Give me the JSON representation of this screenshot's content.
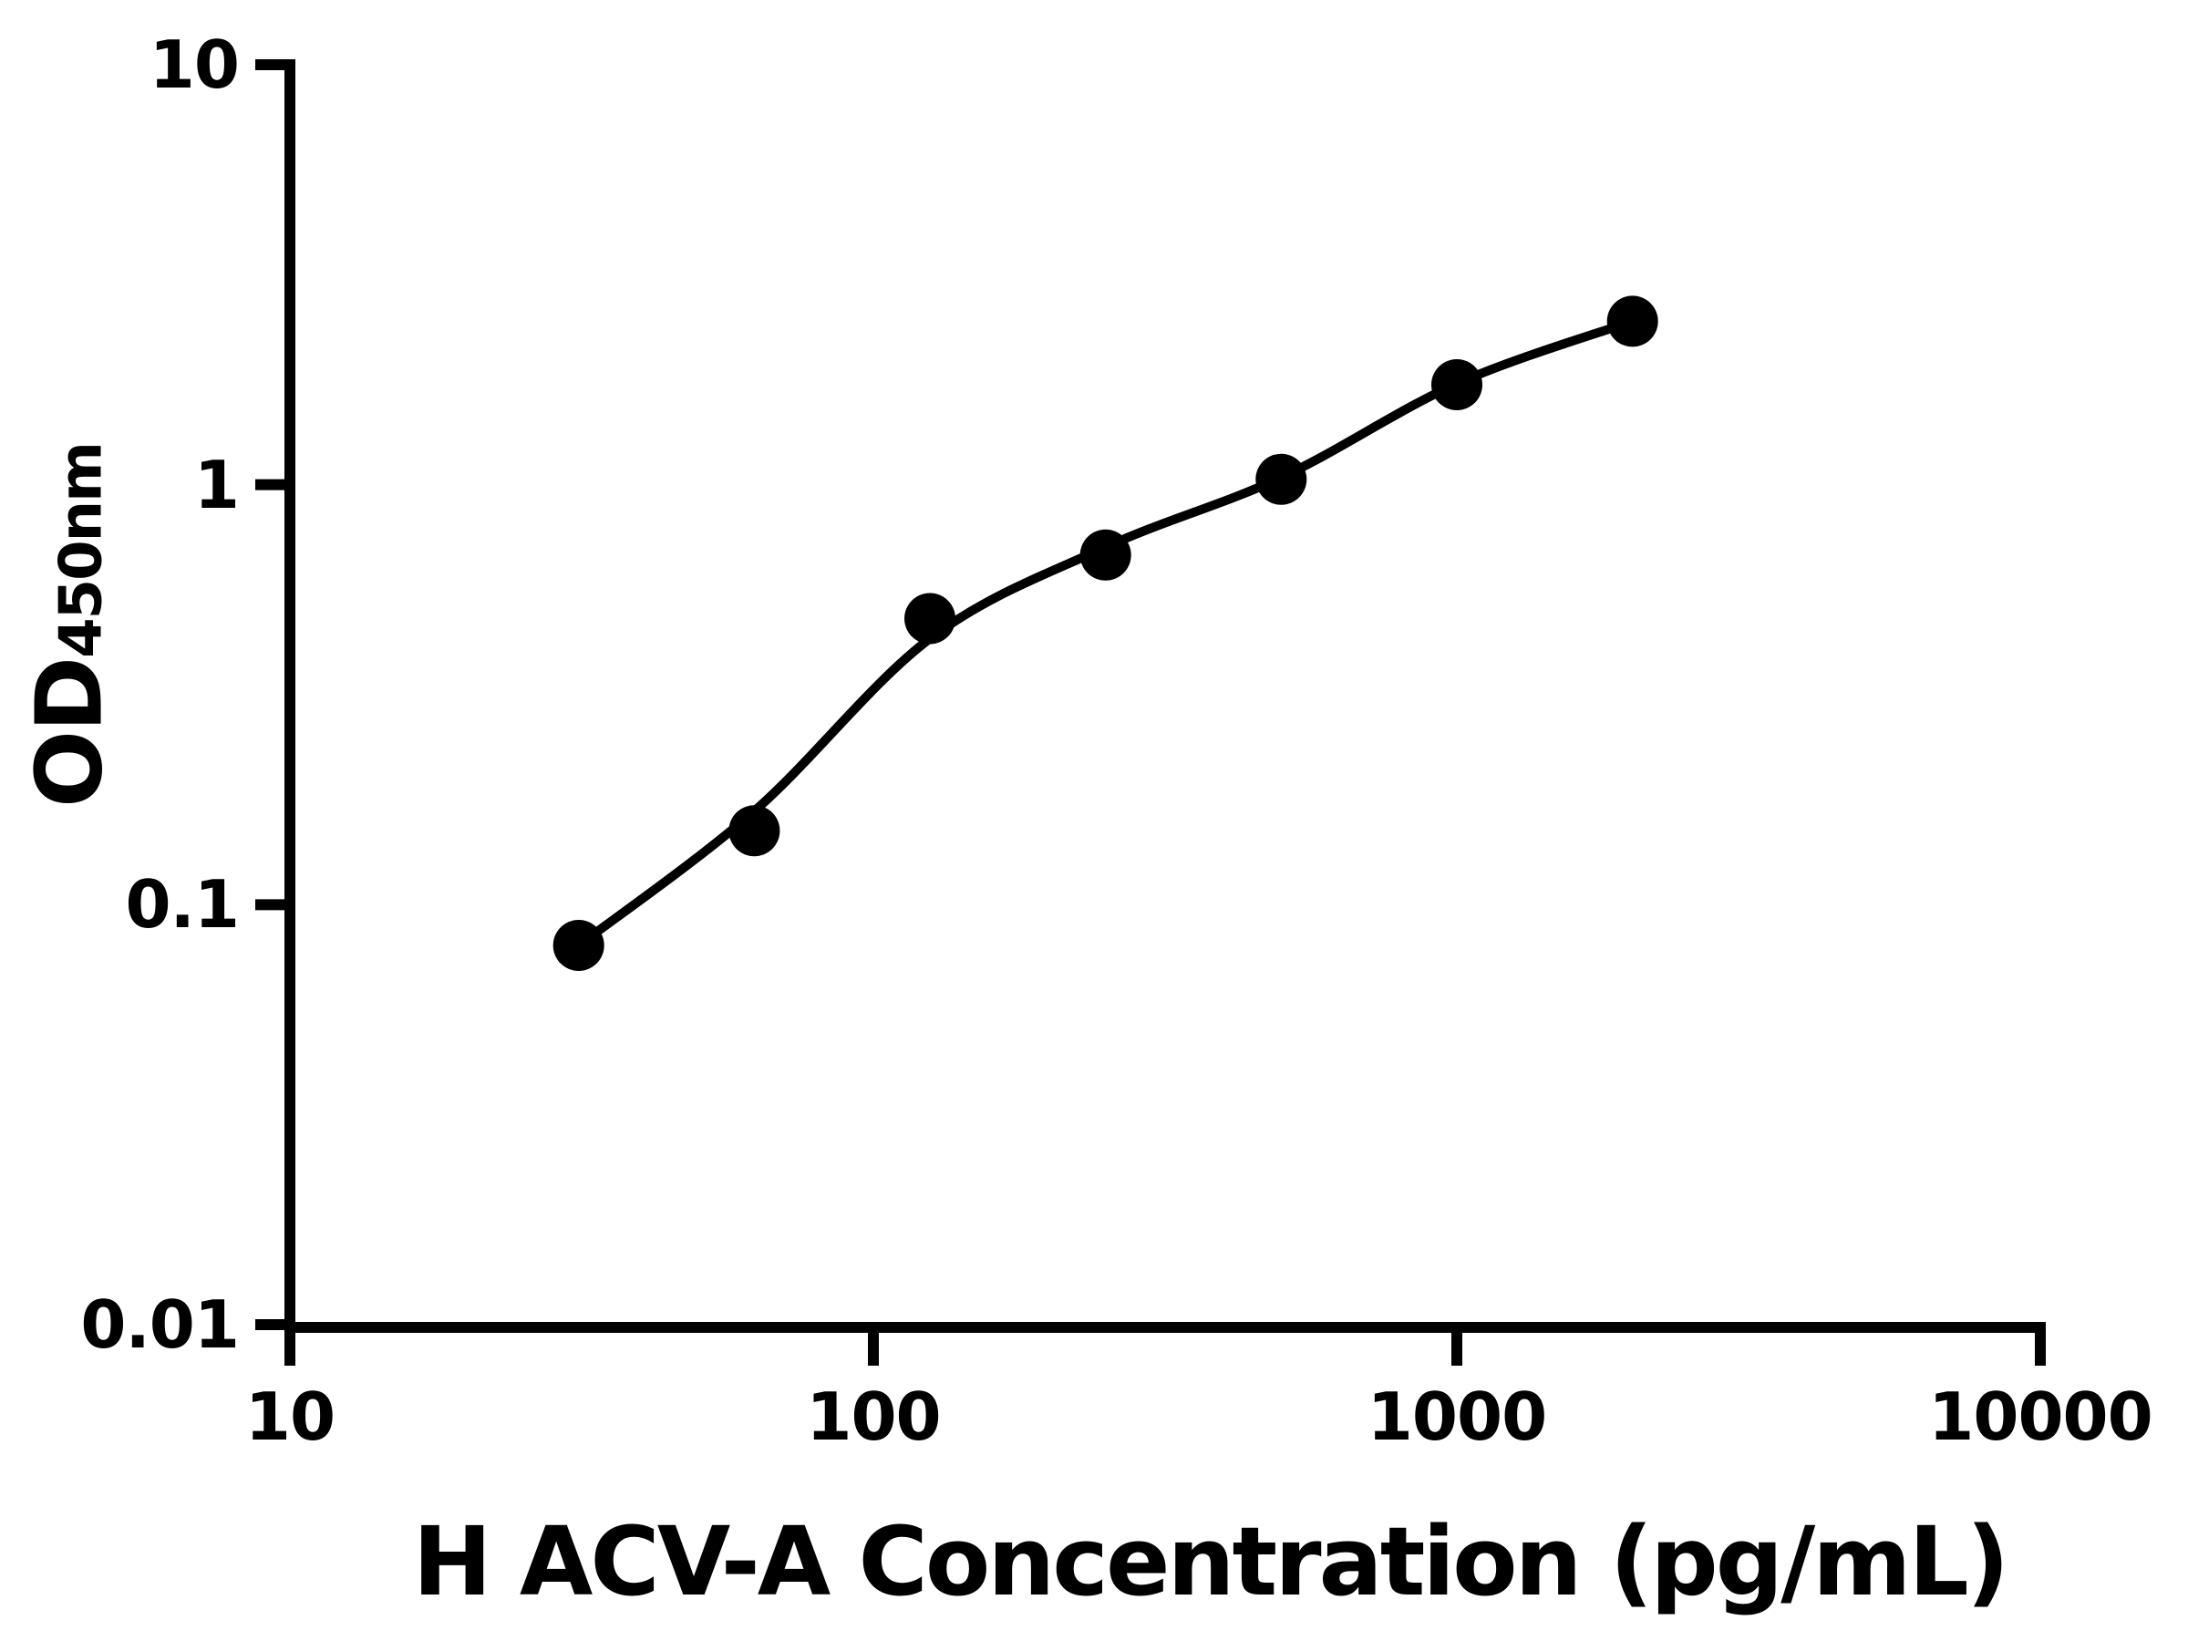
{
  "chart_data": {
    "type": "scatter",
    "title": "",
    "xlabel": "H ACV-A Concentration (pg/mL)",
    "ylabel_main": "OD",
    "ylabel_sub": "450nm",
    "x_scale": "log",
    "y_scale": "log",
    "xlim": [
      10,
      10000
    ],
    "ylim": [
      0.01,
      10
    ],
    "x_ticks": [
      10,
      100,
      1000,
      10000
    ],
    "x_tick_labels": [
      "10",
      "100",
      "1000",
      "10000"
    ],
    "y_ticks": [
      0.01,
      0.1,
      1,
      10
    ],
    "y_tick_labels": [
      "0.01",
      "0.1",
      "1",
      "10"
    ],
    "grid": false,
    "legend": "none",
    "marker_color": "#000000",
    "line_color": "#000000",
    "background": "#ffffff",
    "series": [
      {
        "x": [
          31.25,
          62.5,
          125,
          250,
          500,
          1000,
          2000
        ],
        "y": [
          0.08,
          0.15,
          0.48,
          0.68,
          1.03,
          1.73,
          2.45
        ]
      }
    ],
    "fit_curve": {
      "x": [
        31.25,
        62.5,
        125,
        250,
        500,
        1000,
        2000
      ],
      "y": [
        0.08,
        0.167,
        0.43,
        0.71,
        1.04,
        1.74,
        2.45
      ]
    }
  }
}
